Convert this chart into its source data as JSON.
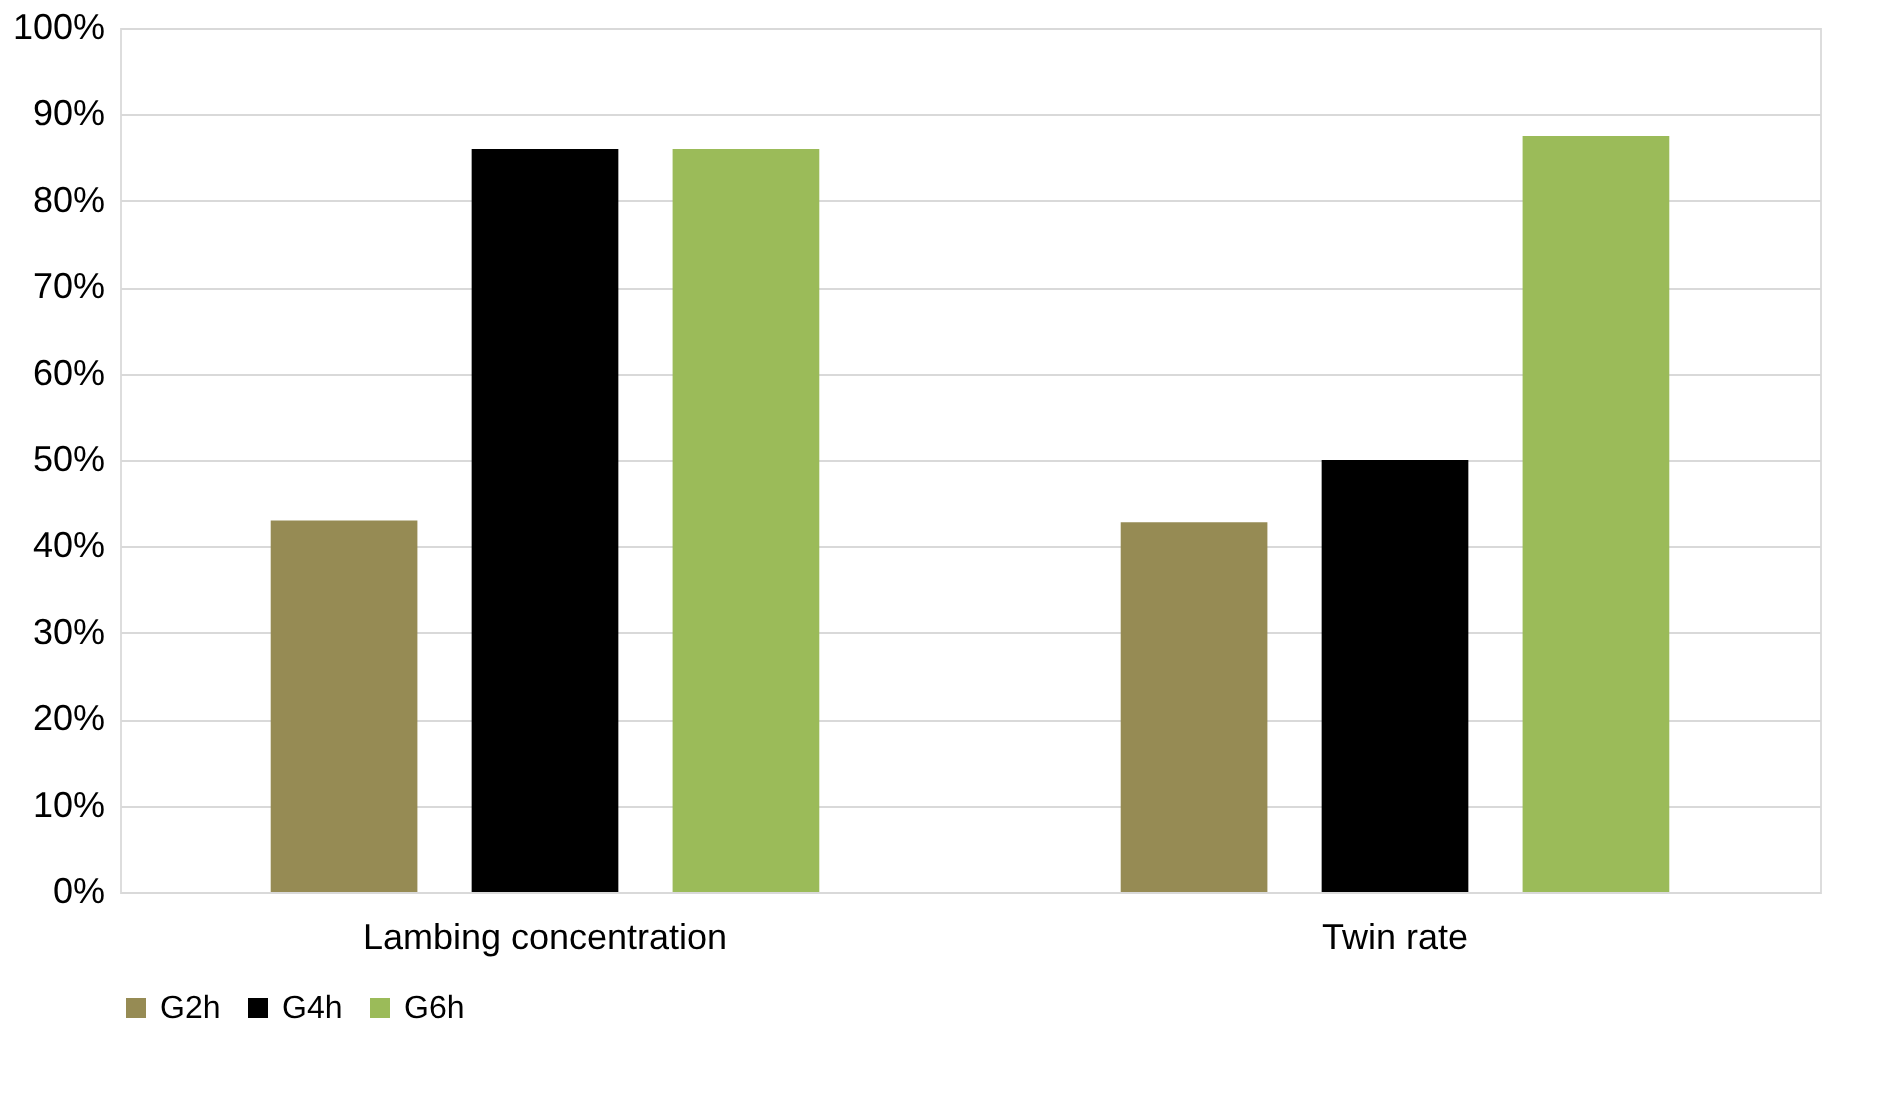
{
  "chart_data": {
    "type": "bar",
    "categories": [
      "Lambing concentration",
      "Twin rate"
    ],
    "series": [
      {
        "name": "G2h",
        "color": "#968b54",
        "values": [
          43,
          42.8
        ]
      },
      {
        "name": "G4h",
        "color": "#000000",
        "values": [
          86,
          50
        ]
      },
      {
        "name": "G6h",
        "color": "#9bbb59",
        "values": [
          86,
          87.5
        ]
      }
    ],
    "ylim": [
      0,
      100
    ],
    "yticks": [
      {
        "value": 0,
        "label": "0%"
      },
      {
        "value": 10,
        "label": "10%"
      },
      {
        "value": 20,
        "label": "20%"
      },
      {
        "value": 30,
        "label": "30%"
      },
      {
        "value": 40,
        "label": "40%"
      },
      {
        "value": 50,
        "label": "50%"
      },
      {
        "value": 60,
        "label": "60%"
      },
      {
        "value": 70,
        "label": "70%"
      },
      {
        "value": 80,
        "label": "80%"
      },
      {
        "value": 90,
        "label": "90%"
      },
      {
        "value": 100,
        "label": "100%"
      }
    ],
    "grid": "y",
    "legend": "bottom"
  }
}
